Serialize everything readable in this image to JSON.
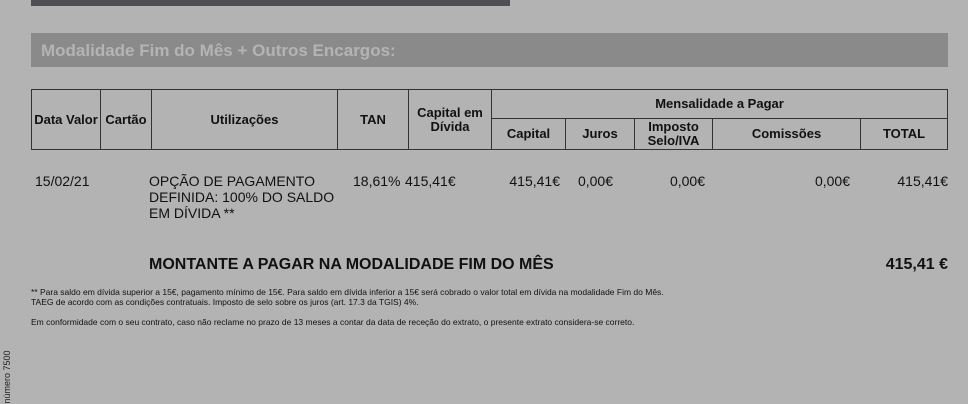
{
  "section_title": "Modalidade Fim do Mês + Outros Encargos:",
  "table": {
    "headers": {
      "data_valor": "Data Valor",
      "cartao": "Cartão",
      "utilizacoes": "Utilizações",
      "tan": "TAN",
      "capital_divida": "Capital em Dívida",
      "mensalidade": "Mensalidade a Pagar",
      "capital": "Capital",
      "juros": "Juros",
      "imposto": "Imposto Selo/IVA",
      "comissoes": "Comissões",
      "total": "TOTAL"
    },
    "row": {
      "data_valor": "15/02/21",
      "cartao": "",
      "utilizacoes": "OPÇÃO DE PAGAMENTO DEFINIDA: 100% DO SALDO EM DÍVIDA **",
      "tan": "18,61%",
      "capital_divida": "415,41€",
      "capital": "415,41€",
      "juros": "0,00€",
      "imposto": "0,00€",
      "comissoes": "0,00€",
      "total": "415,41€"
    }
  },
  "montante": {
    "label": "MONTANTE A PAGAR NA MODALIDADE FIM DO MÊS",
    "value": "415,41 €"
  },
  "notes": [
    "** Para saldo em dívida superior a 15€, pagamento mínimo de 15€. Para saldo em dívida inferior a 15€ será cobrado o valor total em dívida na modalidade Fim do Mês.",
    "TAEG de acordo com as condições contratuais. Imposto de selo sobre os juros (art. 17.3 da TGIS) 4%.",
    "Em conformidade com o seu contrato, caso não reclame no prazo de 13 meses a contar da data de receção do extrato, o presente extrato considera-se correto."
  ],
  "side_text": "número 7500"
}
